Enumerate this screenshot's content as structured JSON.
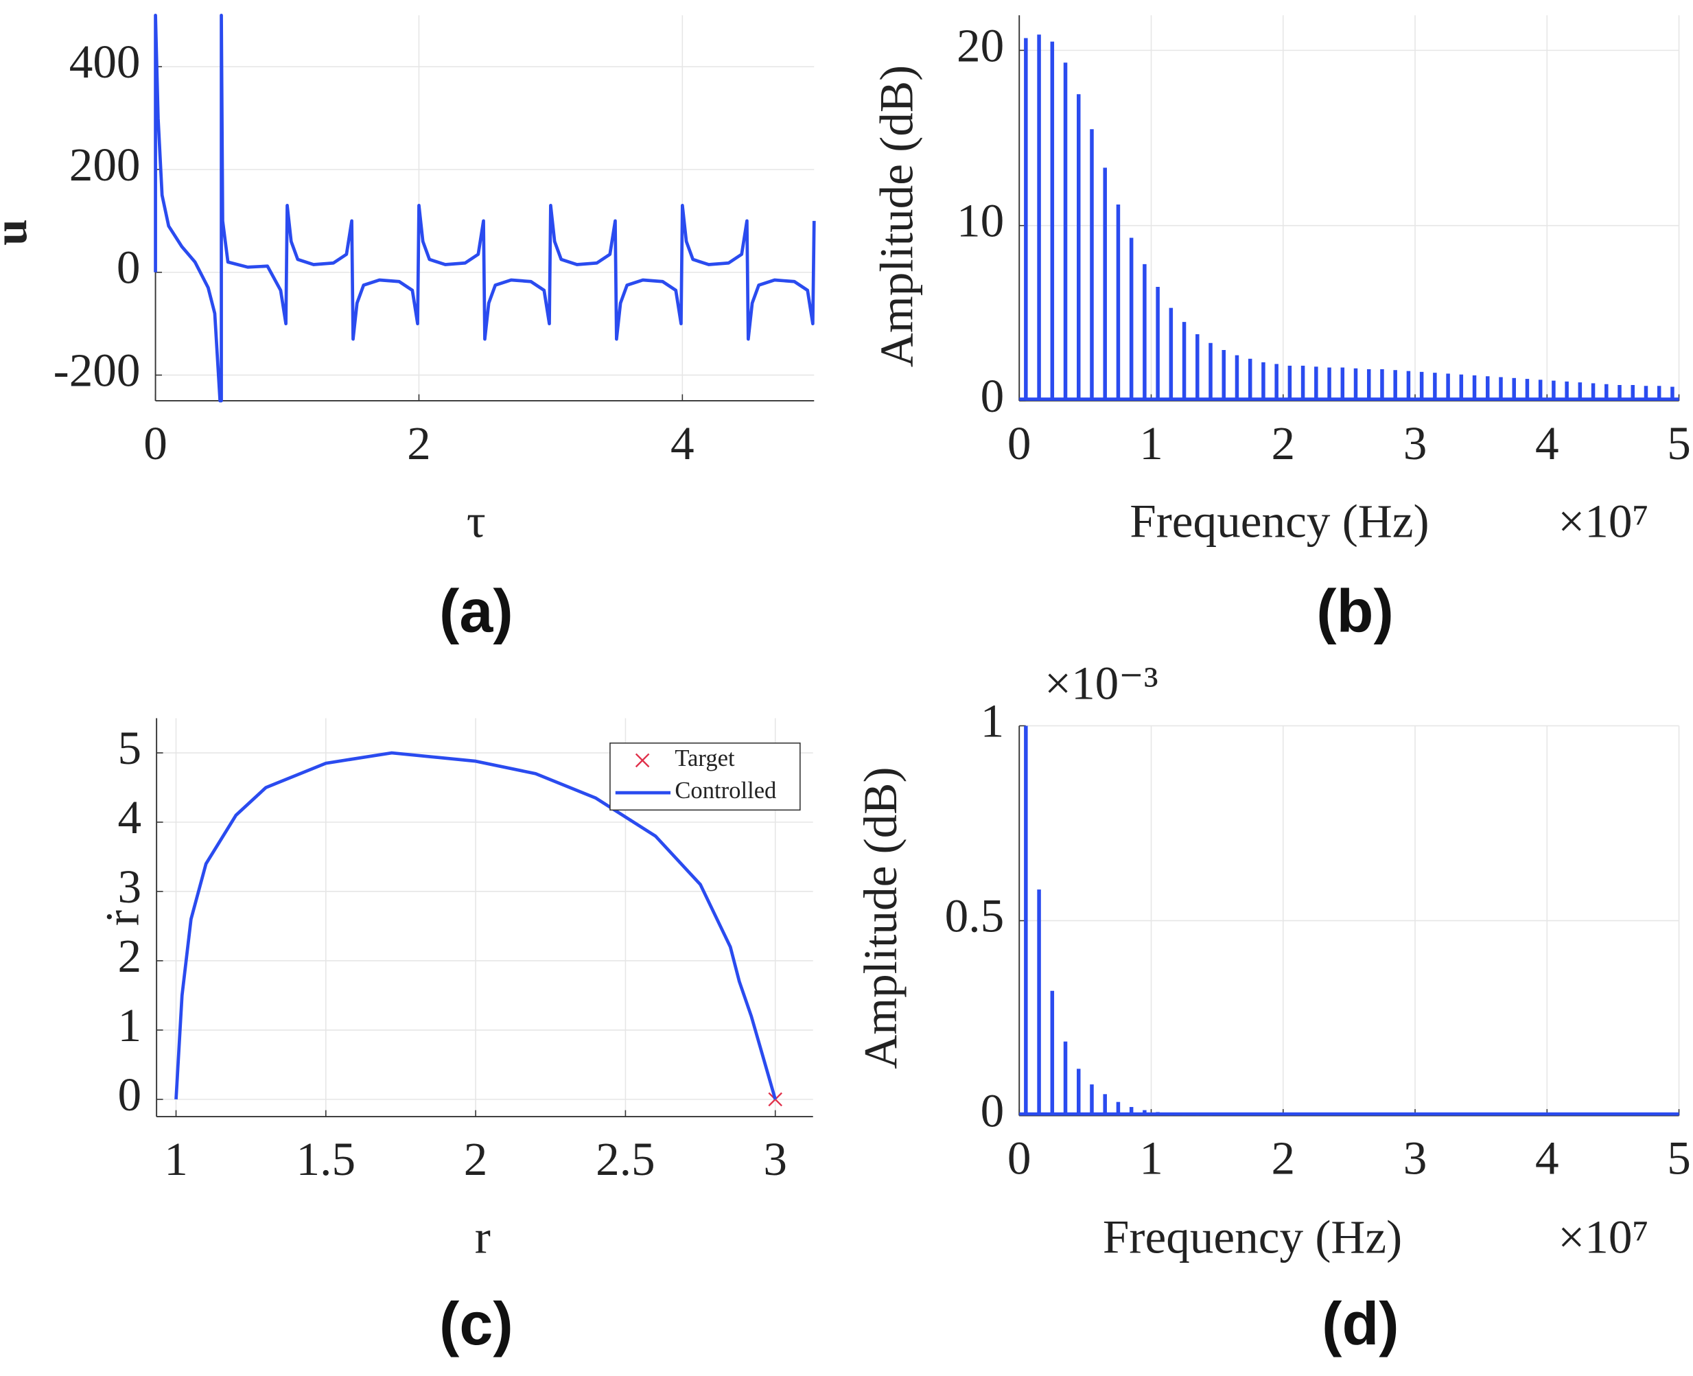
{
  "chart_data": [
    {
      "type": "line",
      "panel_label": "(a)",
      "x_label": "τ",
      "y_label": "u",
      "color": "#2a4bef",
      "grid": true,
      "xlim": [
        0,
        5
      ],
      "ylim": [
        -250,
        500
      ],
      "xticks": [
        0,
        2,
        4
      ],
      "yticks": [
        -200,
        0,
        200,
        400
      ],
      "x": [
        0,
        0,
        0.02,
        0.05,
        0.1,
        0.2,
        0.3,
        0.4,
        0.45,
        0.49,
        0.5,
        0.5,
        0.51,
        0.55,
        0.7,
        0.85,
        0.95,
        0.99,
        1,
        1.03,
        1.08,
        1.2,
        1.35,
        1.45,
        1.49,
        1.5,
        1.53,
        1.58,
        1.7,
        1.85,
        1.95,
        1.99,
        2,
        2.03,
        2.08,
        2.2,
        2.35,
        2.45,
        2.49,
        2.5,
        2.53,
        2.58,
        2.7,
        2.85,
        2.95,
        2.99,
        3,
        3.03,
        3.08,
        3.2,
        3.35,
        3.45,
        3.49,
        3.5,
        3.53,
        3.58,
        3.7,
        3.85,
        3.95,
        3.99,
        4,
        4.03,
        4.08,
        4.2,
        4.35,
        4.45,
        4.49,
        4.5,
        4.53,
        4.58,
        4.7,
        4.85,
        4.95,
        4.99,
        5
      ],
      "values": [
        0,
        500,
        300,
        150,
        90,
        50,
        20,
        -30,
        -80,
        -250,
        -250,
        500,
        100,
        20,
        10,
        12,
        -35,
        -100,
        130,
        60,
        25,
        15,
        18,
        35,
        100,
        -130,
        -60,
        -25,
        -15,
        -18,
        -35,
        -100,
        130,
        60,
        25,
        15,
        18,
        35,
        100,
        -130,
        -60,
        -25,
        -15,
        -18,
        -35,
        -100,
        130,
        60,
        25,
        15,
        18,
        35,
        100,
        -130,
        -60,
        -25,
        -15,
        -18,
        -35,
        -100,
        130,
        60,
        25,
        15,
        18,
        35,
        100,
        -130,
        -60,
        -25,
        -15,
        -18,
        -35,
        -100,
        100
      ]
    },
    {
      "type": "stem",
      "panel_label": "(b)",
      "x_label": "Frequency (Hz)",
      "x_multiplier": "×10⁷",
      "y_label": "Amplitude (dB)",
      "color": "#2a4bef",
      "grid": true,
      "xlim": [
        0,
        5
      ],
      "ylim": [
        0,
        22
      ],
      "xticks": [
        0,
        1,
        2,
        3,
        4,
        5
      ],
      "yticks": [
        0,
        10,
        20
      ],
      "x": [
        0.05,
        0.15,
        0.25,
        0.35,
        0.45,
        0.55,
        0.65,
        0.75,
        0.85,
        0.95,
        1.05,
        1.15,
        1.25,
        1.35,
        1.45,
        1.55,
        1.65,
        1.75,
        1.85,
        1.95,
        2.05,
        2.15,
        2.25,
        2.35,
        2.45,
        2.55,
        2.65,
        2.75,
        2.85,
        2.95,
        3.05,
        3.15,
        3.25,
        3.35,
        3.45,
        3.55,
        3.65,
        3.75,
        3.85,
        3.95,
        4.05,
        4.15,
        4.25,
        4.35,
        4.45,
        4.55,
        4.65,
        4.75,
        4.85,
        4.95
      ],
      "values": [
        20.7,
        20.9,
        20.5,
        19.3,
        17.5,
        15.5,
        13.3,
        11.2,
        9.3,
        7.8,
        6.5,
        5.3,
        4.5,
        3.8,
        3.3,
        2.9,
        2.6,
        2.4,
        2.2,
        2.1,
        2.0,
        2.0,
        1.95,
        1.9,
        1.9,
        1.85,
        1.8,
        1.8,
        1.75,
        1.7,
        1.65,
        1.6,
        1.55,
        1.5,
        1.45,
        1.4,
        1.35,
        1.3,
        1.25,
        1.2,
        1.15,
        1.1,
        1.05,
        1.0,
        0.95,
        0.9,
        0.9,
        0.85,
        0.85,
        0.8
      ]
    },
    {
      "type": "line",
      "panel_label": "(c)",
      "x_label": "r",
      "y_label": "ṙ",
      "grid": true,
      "legend": "upper right",
      "xlim": [
        0.935,
        3.126
      ],
      "ylim": [
        -0.25,
        5.5
      ],
      "xticks": [
        1,
        1.5,
        2,
        2.5,
        3
      ],
      "yticks": [
        0,
        1,
        2,
        3,
        4,
        5
      ],
      "series": [
        {
          "name": "Target",
          "color": "#e0304a",
          "marker": "x",
          "x": [
            3
          ],
          "values": [
            0
          ]
        },
        {
          "name": "Controlled",
          "color": "#2a4bef",
          "x": [
            1,
            1.02,
            1.05,
            1.1,
            1.2,
            1.3,
            1.5,
            1.72,
            2,
            2.2,
            2.4,
            2.6,
            2.75,
            2.85,
            2.88,
            2.92,
            2.96,
            3
          ],
          "values": [
            0,
            1.5,
            2.6,
            3.4,
            4.1,
            4.5,
            4.85,
            5.0,
            4.88,
            4.7,
            4.35,
            3.8,
            3.1,
            2.2,
            1.7,
            1.2,
            0.6,
            0
          ]
        }
      ]
    },
    {
      "type": "stem",
      "panel_label": "(d)",
      "x_label": "Frequency (Hz)",
      "x_multiplier": "×10⁷",
      "y_multiplier": "×10⁻³",
      "y_label": "Amplitude (dB)",
      "color": "#2a4bef",
      "grid": true,
      "xlim": [
        0,
        5
      ],
      "ylim": [
        0,
        1
      ],
      "xticks": [
        0,
        1,
        2,
        3,
        4,
        5
      ],
      "yticks": [
        0,
        0.5,
        1
      ],
      "x": [
        0.05,
        0.15,
        0.25,
        0.35,
        0.45,
        0.55,
        0.65,
        0.75,
        0.85,
        0.95,
        1.05,
        1.15,
        1.25,
        1.35,
        1.45,
        1.55,
        1.65,
        1.75,
        1.85,
        1.95,
        2.05,
        2.15,
        2.25,
        2.35,
        2.45,
        2.55,
        2.65,
        2.75,
        2.85,
        2.95,
        3.05,
        3.15,
        3.25,
        3.35,
        3.45,
        3.55,
        3.65,
        3.75,
        3.85,
        3.95,
        4.05,
        4.15,
        4.25,
        4.35,
        4.45,
        4.55,
        4.65,
        4.75,
        4.85,
        4.95
      ],
      "values": [
        1.0,
        0.58,
        0.32,
        0.19,
        0.12,
        0.08,
        0.055,
        0.035,
        0.022,
        0.014,
        0.009,
        0.006,
        0.004,
        0.003,
        0.002,
        0,
        0,
        0,
        0,
        0,
        0,
        0,
        0,
        0,
        0,
        0,
        0,
        0,
        0,
        0,
        0,
        0,
        0,
        0,
        0,
        0,
        0,
        0,
        0,
        0,
        0,
        0,
        0,
        0,
        0,
        0,
        0,
        0,
        0,
        0
      ]
    }
  ]
}
